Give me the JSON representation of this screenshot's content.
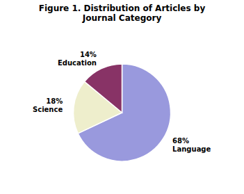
{
  "chart_data": {
    "type": "pie",
    "title": "Figure 1. Distribution of Articles by\nJournal Category",
    "categories": [
      "Language",
      "Science",
      "Education"
    ],
    "values": [
      68,
      18,
      14
    ],
    "value_labels": [
      "68%",
      "18%",
      "14%"
    ],
    "colors": [
      "#9999dd",
      "#eeeecc",
      "#883366"
    ],
    "data_labels": true
  }
}
